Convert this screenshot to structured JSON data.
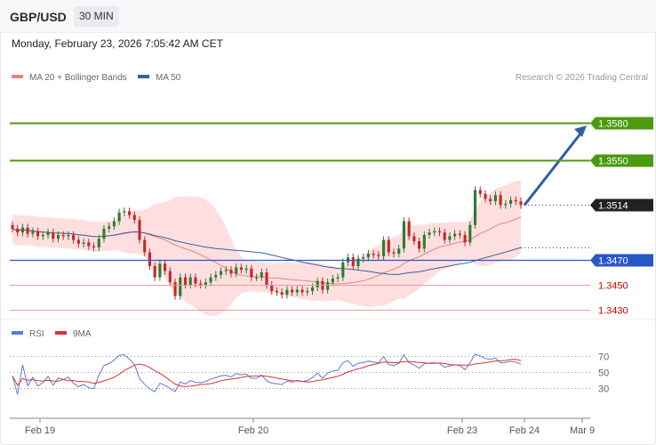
{
  "header": {
    "symbol": "GBP/USD",
    "timeframe": "30 MIN"
  },
  "datetime": "Monday, February 23, 2026 7:05:42 AM CET",
  "legend": {
    "ma_bb": "MA 20 + Bollinger Bands",
    "ma50": "MA 50"
  },
  "copyright": "Research © 2026 Trading Central",
  "colors": {
    "up": "#2e7d32",
    "down": "#c62828",
    "bb_fill": "#fdd9d9",
    "ma20": "#f08080",
    "ma50": "#3d5f9f",
    "resistance": "#4c9a10",
    "support": "#2956c7",
    "target_arrow": "#2f5ea8",
    "rsi": "#5a7bd6",
    "rsi_ma": "#e03030"
  },
  "chart_data": {
    "type": "candlestick",
    "price_axis": {
      "ylim": [
        1.342,
        1.3605
      ]
    },
    "x_labels": [
      "Feb 19",
      "Feb 20",
      "Feb 23",
      "Feb 24",
      "Mar 9"
    ],
    "levels": [
      {
        "label": "1.3580",
        "value": 1.358,
        "kind": "resistance"
      },
      {
        "label": "1.3550",
        "value": 1.355,
        "kind": "resistance"
      },
      {
        "label": "1.3514",
        "value": 1.3514,
        "kind": "last"
      },
      {
        "label": "1.3470",
        "value": 1.347,
        "kind": "pivot"
      },
      {
        "label": "1.3450",
        "value": 1.345,
        "kind": "support"
      },
      {
        "label": "1.3430",
        "value": 1.343,
        "kind": "support"
      }
    ],
    "closes": [
      1.3495,
      1.3492,
      1.3496,
      1.3491,
      1.3493,
      1.3489,
      1.349,
      1.3492,
      1.3487,
      1.349,
      1.3489,
      1.349,
      1.3486,
      1.3483,
      1.3484,
      1.3481,
      1.348,
      1.3487,
      1.3495,
      1.3497,
      1.3501,
      1.3508,
      1.3509,
      1.3506,
      1.3502,
      1.3486,
      1.3476,
      1.3465,
      1.3456,
      1.3467,
      1.3461,
      1.3452,
      1.3441,
      1.3456,
      1.345,
      1.3456,
      1.3451,
      1.345,
      1.3452,
      1.3456,
      1.3458,
      1.3461,
      1.3462,
      1.3459,
      1.3464,
      1.3462,
      1.3463,
      1.3456,
      1.3456,
      1.346,
      1.345,
      1.3445,
      1.3444,
      1.3442,
      1.3446,
      1.3444,
      1.3446,
      1.3444,
      1.3445,
      1.3448,
      1.3453,
      1.3446,
      1.3452,
      1.3455,
      1.3456,
      1.3468,
      1.3472,
      1.3465,
      1.3471,
      1.3472,
      1.3475,
      1.3474,
      1.3473,
      1.3486,
      1.3476,
      1.3475,
      1.3479,
      1.3501,
      1.3489,
      1.3485,
      1.3479,
      1.349,
      1.3492,
      1.3493,
      1.3492,
      1.3486,
      1.3489,
      1.3491,
      1.349,
      1.3484,
      1.3498,
      1.3526,
      1.3523,
      1.3519,
      1.3517,
      1.3522,
      1.3514,
      1.3515,
      1.3518,
      1.3517,
      1.3514
    ],
    "rsi": {
      "legend": [
        "RSI",
        "9MA"
      ],
      "ylim": [
        20,
        80
      ],
      "ticks": [
        "70",
        "50",
        "30"
      ],
      "levels": [
        70,
        50,
        30
      ]
    }
  }
}
